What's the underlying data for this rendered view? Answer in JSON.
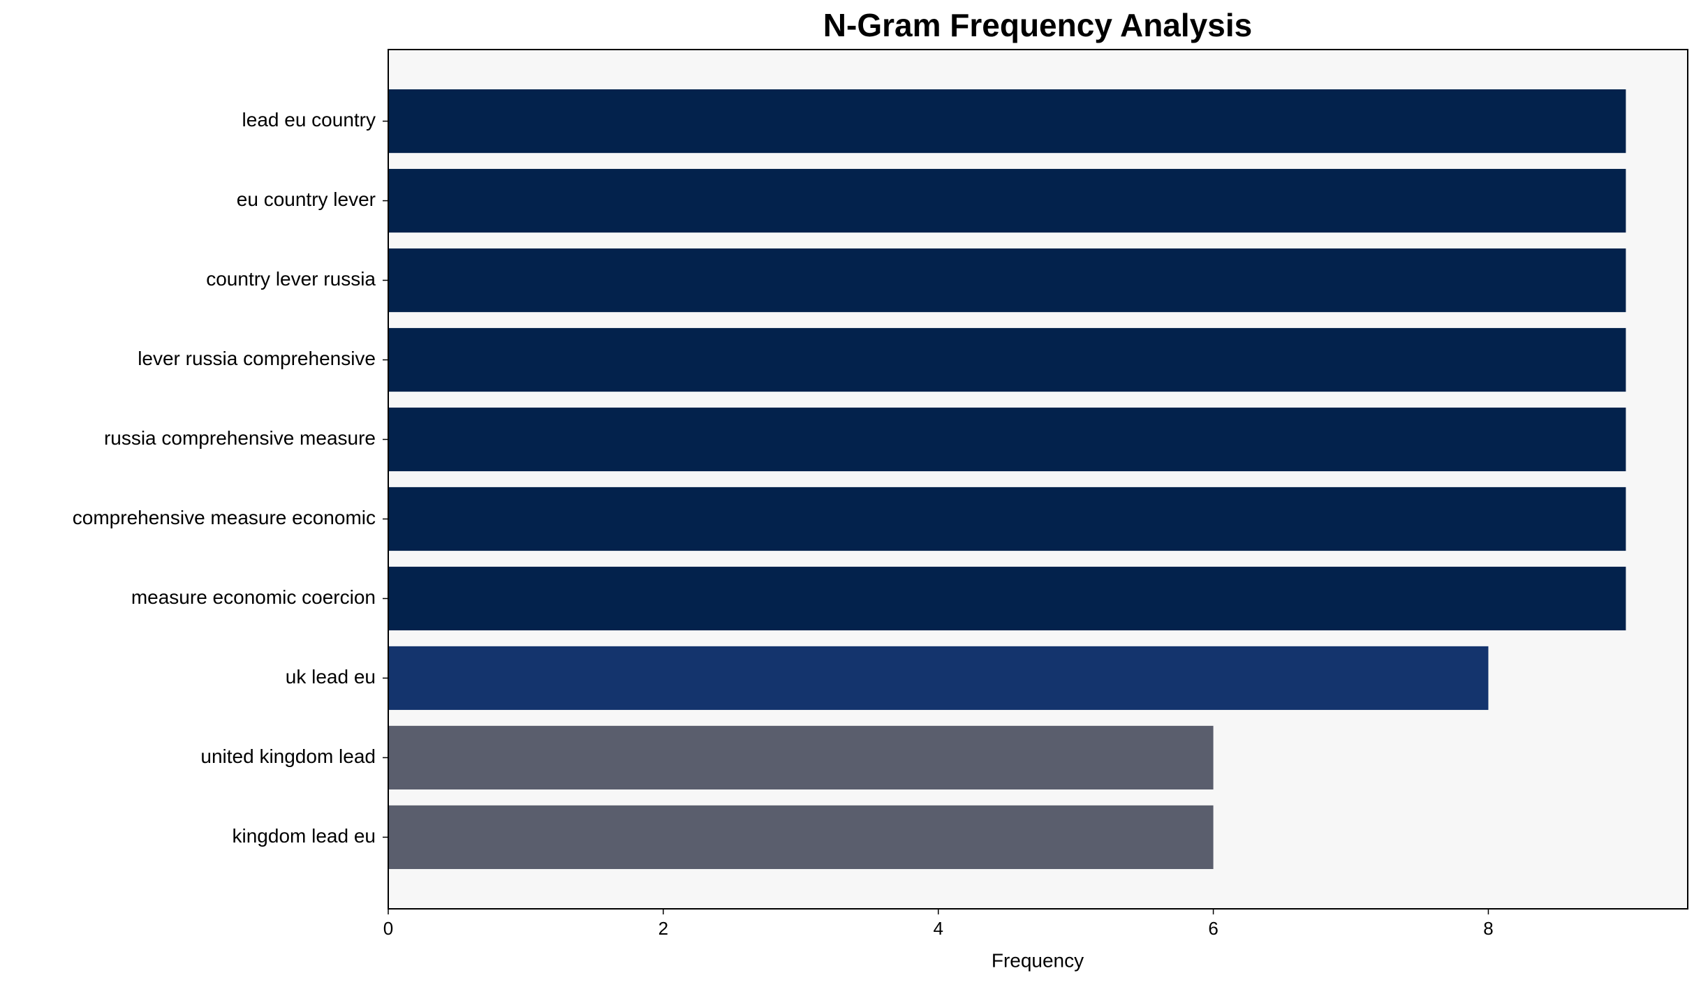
{
  "chart_data": {
    "type": "barh",
    "title": "N-Gram Frequency Analysis",
    "xlabel": "Frequency",
    "categories": [
      "lead eu country",
      "eu country lever",
      "country lever russia",
      "lever russia comprehensive",
      "russia comprehensive measure",
      "comprehensive measure economic",
      "measure economic coercion",
      "uk lead eu",
      "united kingdom lead",
      "kingdom lead eu"
    ],
    "values": [
      9,
      9,
      9,
      9,
      9,
      9,
      9,
      8,
      6,
      6
    ],
    "colors": [
      "#03224c",
      "#03224c",
      "#03224c",
      "#03224c",
      "#03224c",
      "#03224c",
      "#03224c",
      "#14346d",
      "#5a5e6d",
      "#5a5e6d"
    ],
    "xlim": [
      0,
      9.45
    ],
    "xticks": [
      0,
      2,
      4,
      6,
      8
    ],
    "background": "#f7f7f7"
  }
}
